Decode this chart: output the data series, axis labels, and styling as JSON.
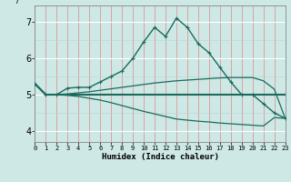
{
  "xlabel": "Humidex (Indice chaleur)",
  "background_color": "#cde8e5",
  "line_color": "#1a6b5e",
  "x_ticks": [
    0,
    1,
    2,
    3,
    4,
    5,
    6,
    7,
    8,
    9,
    10,
    11,
    12,
    13,
    14,
    15,
    16,
    17,
    18,
    19,
    20,
    21,
    22,
    23
  ],
  "y_ticks": [
    4,
    5,
    6,
    7
  ],
  "ylim": [
    3.7,
    7.45
  ],
  "xlim": [
    0,
    23
  ],
  "series": [
    {
      "x": [
        0,
        1,
        2,
        3,
        4,
        5,
        6,
        7,
        8,
        9,
        10,
        11,
        12,
        13,
        14,
        15,
        16,
        17,
        18,
        19,
        20,
        21,
        22,
        23
      ],
      "y": [
        5.3,
        5.0,
        5.0,
        5.18,
        5.2,
        5.2,
        5.35,
        5.5,
        5.65,
        6.0,
        6.45,
        6.85,
        6.6,
        7.1,
        6.85,
        6.4,
        6.15,
        5.75,
        5.35,
        5.0,
        5.0,
        4.75,
        4.5,
        4.35
      ],
      "marker": true,
      "linewidth": 1.0
    },
    {
      "x": [
        0,
        1,
        2,
        3,
        4,
        5,
        6,
        7,
        8,
        9,
        10,
        11,
        12,
        13,
        14,
        15,
        16,
        17,
        18,
        19,
        20,
        21,
        22,
        23
      ],
      "y": [
        5.3,
        5.0,
        5.0,
        5.0,
        5.0,
        5.0,
        5.0,
        5.0,
        5.0,
        5.0,
        5.0,
        5.0,
        5.0,
        5.0,
        5.0,
        5.0,
        5.0,
        5.0,
        5.0,
        5.0,
        5.0,
        5.0,
        5.0,
        5.0
      ],
      "marker": false,
      "linewidth": 1.5
    },
    {
      "x": [
        0,
        1,
        2,
        3,
        4,
        5,
        6,
        7,
        8,
        9,
        10,
        11,
        12,
        13,
        14,
        15,
        16,
        17,
        18,
        19,
        20,
        21,
        22,
        23
      ],
      "y": [
        5.3,
        5.0,
        5.0,
        5.02,
        5.05,
        5.08,
        5.12,
        5.16,
        5.2,
        5.24,
        5.28,
        5.32,
        5.35,
        5.38,
        5.4,
        5.42,
        5.44,
        5.46,
        5.47,
        5.47,
        5.47,
        5.38,
        5.15,
        4.35
      ],
      "marker": false,
      "linewidth": 0.9
    },
    {
      "x": [
        0,
        1,
        2,
        3,
        4,
        5,
        6,
        7,
        8,
        9,
        10,
        11,
        12,
        13,
        14,
        15,
        16,
        17,
        18,
        19,
        20,
        21,
        22,
        23
      ],
      "y": [
        5.3,
        5.0,
        5.0,
        4.98,
        4.95,
        4.9,
        4.85,
        4.78,
        4.7,
        4.62,
        4.54,
        4.47,
        4.4,
        4.33,
        4.3,
        4.27,
        4.25,
        4.22,
        4.2,
        4.18,
        4.16,
        4.14,
        4.37,
        4.35
      ],
      "marker": false,
      "linewidth": 0.9
    }
  ]
}
